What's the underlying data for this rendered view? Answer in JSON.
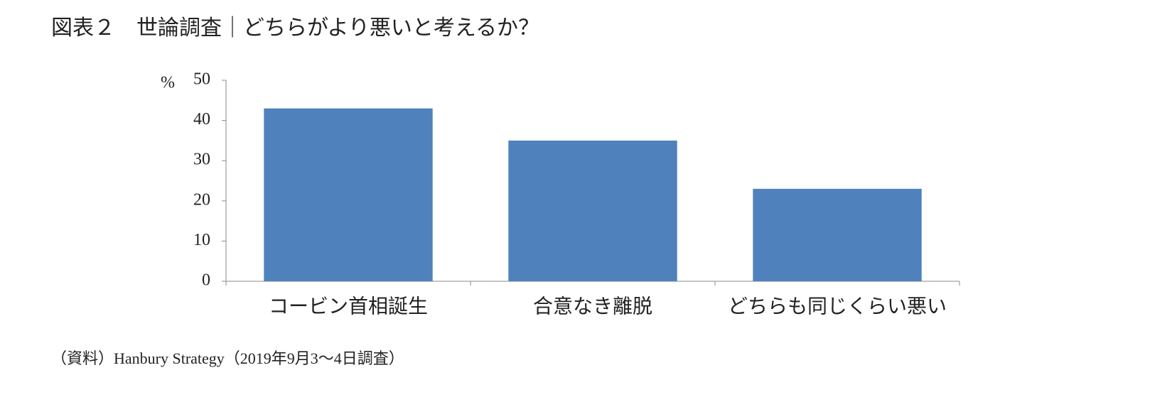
{
  "chart_data": {
    "type": "bar",
    "title": "図表２　世論調査｜どちらがより悪いと考えるか？",
    "y_label": "%",
    "categories": [
      "コービン首相誕生",
      "合意なき離脱",
      "どちらも同じくらい悪い"
    ],
    "values": [
      43,
      35,
      23
    ],
    "color": "#4f81bd",
    "ylim": [
      0,
      50
    ],
    "yticks": [
      0,
      10,
      20,
      30,
      40,
      50
    ],
    "grid": false,
    "source": "（資料）Hanbury Strategy（2019年9月3～4日調査）"
  }
}
